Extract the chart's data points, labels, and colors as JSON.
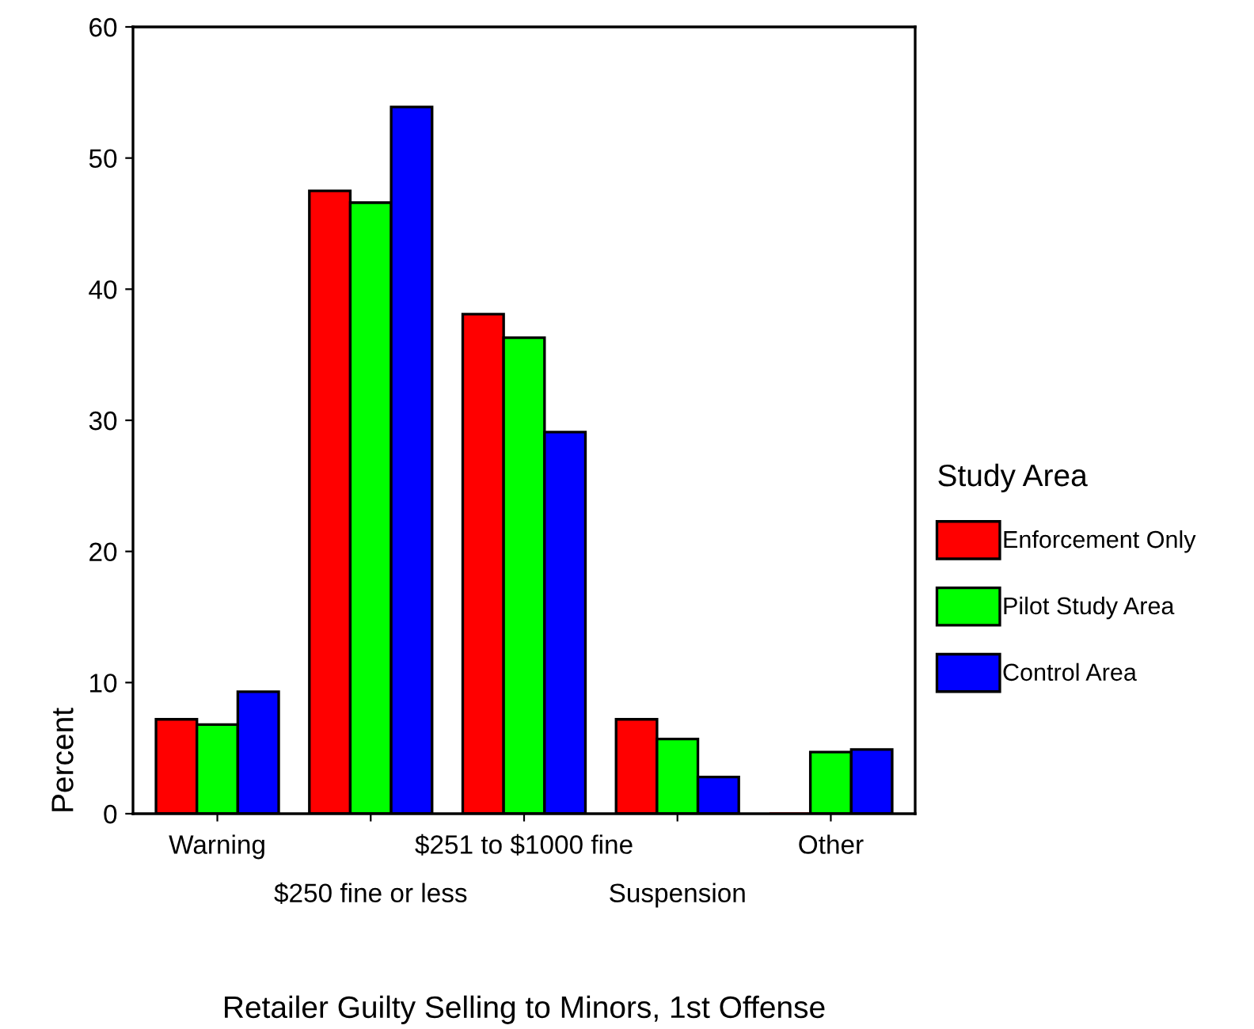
{
  "chart_data": {
    "type": "bar",
    "xlabel": "Retailer Guilty Selling to Minors, 1st Offense",
    "ylabel": "Percent",
    "legend_title": "Study Area",
    "categories": [
      "Warning",
      "$250 fine or less",
      "$251 to $1000 fine",
      "Suspension",
      "Other"
    ],
    "series": [
      {
        "name": "Enforcement Only",
        "color": "#ff0000",
        "values": [
          7.2,
          47.5,
          38.1,
          7.2,
          0
        ]
      },
      {
        "name": "Pilot Study Area",
        "color": "#00ff00",
        "values": [
          6.8,
          46.6,
          36.3,
          5.7,
          4.7
        ]
      },
      {
        "name": "Control Area",
        "color": "#0000ff",
        "values": [
          9.3,
          53.9,
          29.1,
          2.8,
          4.9
        ]
      }
    ],
    "ylim": [
      0,
      60
    ],
    "yticks": [
      0,
      10,
      20,
      30,
      40,
      50,
      60
    ],
    "grid": false,
    "legend": "right"
  }
}
